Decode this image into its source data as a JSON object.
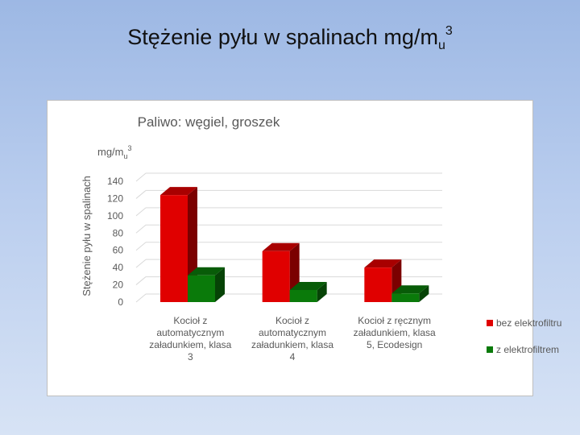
{
  "slide": {
    "title_main": "Stężenie pyłu w spalinach mg/m",
    "title_sub": "u",
    "title_sup": "3"
  },
  "chart_data": {
    "type": "bar",
    "title": "Paliwo: węgiel, groszek",
    "unit_label": "mg/m",
    "unit_sub": "u",
    "unit_sup": "3",
    "ylabel": "Stężenie pyłu w spalinach",
    "ylim": [
      0,
      140
    ],
    "yticks": [
      "0",
      "20",
      "40",
      "60",
      "80",
      "100",
      "120",
      "140"
    ],
    "categories": [
      [
        "Kocioł z",
        "automatycznym",
        "załadunkiem, klasa",
        "3"
      ],
      [
        "Kocioł z",
        "automatycznym",
        "załadunkiem, klasa",
        "4"
      ],
      [
        "Kocioł z ręcznym",
        "załadunkiem, klasa",
        "5, Ecodesign"
      ]
    ],
    "series": [
      {
        "name": "bez elektrofiltru",
        "values": [
          124,
          59,
          40
        ],
        "color": "#e00000"
      },
      {
        "name": "z elektrofiltrem",
        "values": [
          31,
          14,
          10
        ],
        "color": "#0a7a0a"
      }
    ],
    "grid": true,
    "legend_position": "right",
    "style": "3d-column"
  }
}
